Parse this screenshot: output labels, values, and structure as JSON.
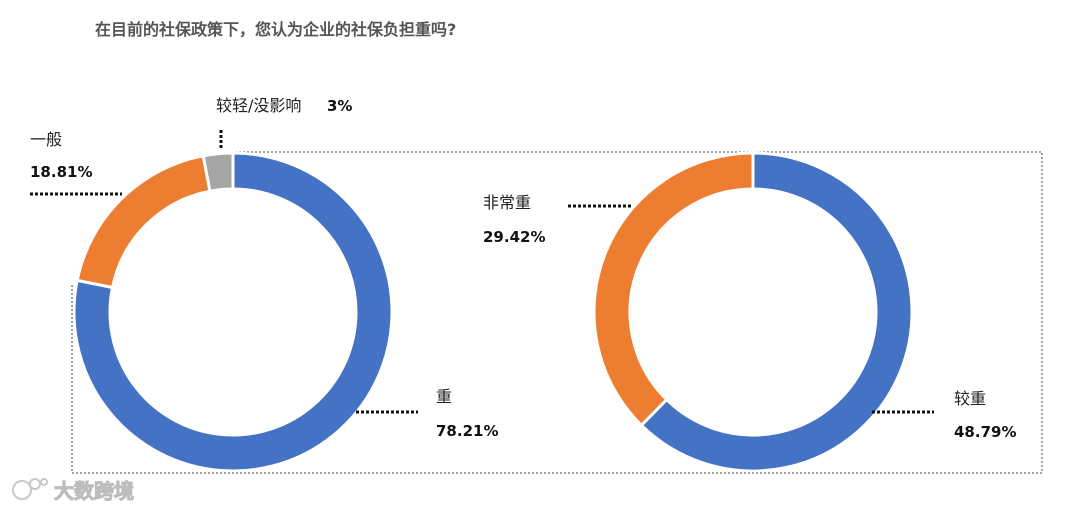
{
  "chart_data": [
    {
      "type": "pie",
      "variant": "donut",
      "title": "在目前的社保政策下，您认为企业的社保负担重吗?",
      "slices": [
        {
          "label": "重",
          "value": 78.21,
          "value_label": "78.21%",
          "color": "#4472C4"
        },
        {
          "label": "一般",
          "value": 18.81,
          "value_label": "18.81%",
          "color": "#ED7D31"
        },
        {
          "label": "较轻/没影响",
          "value": 3,
          "value_label": "3%",
          "color": "#A5A5A5"
        }
      ]
    },
    {
      "type": "pie",
      "variant": "donut",
      "slices": [
        {
          "label": "较重",
          "value": 48.79,
          "value_label": "48.79%",
          "color": "#4472C4"
        },
        {
          "label": "非常重",
          "value": 29.42,
          "value_label": "29.42%",
          "color": "#ED7D31"
        }
      ]
    }
  ],
  "watermark": {
    "text": "大数跨境",
    "icon": "dashu-logo-icon"
  }
}
